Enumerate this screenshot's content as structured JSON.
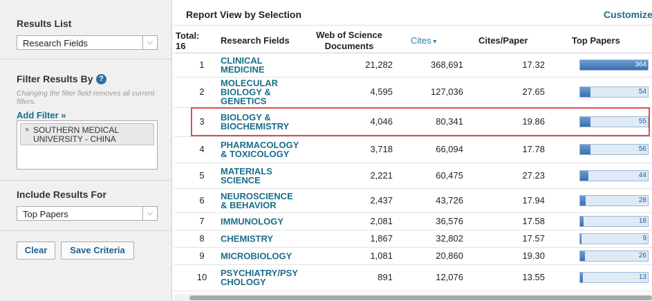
{
  "sidebar": {
    "results_list": {
      "label": "Results List",
      "selected": "Research Fields"
    },
    "filter": {
      "label": "Filter Results By",
      "note": "Changing the filter field removes all current filters.",
      "add_filter": "Add Filter »",
      "filters": [
        "SOUTHERN MEDICAL UNIVERSITY - CHINA"
      ]
    },
    "include": {
      "label": "Include Results For",
      "selected": "Top Papers"
    },
    "buttons": [
      "Clear",
      "Save Criteria"
    ]
  },
  "report": {
    "title": "Report View by Selection",
    "customize": "Customize",
    "table": {
      "columns": [
        "Total: 16",
        "Research Fields",
        "Web of Science Documents",
        "Cites",
        "Cites/Paper",
        "Top Papers"
      ],
      "rows": [
        [
          1,
          "CLINICAL MEDICINE",
          "21,282",
          "368,691",
          "17.32",
          364
        ],
        [
          2,
          "MOLECULAR BIOLOGY & GENETICS",
          "4,595",
          "127,036",
          "27.65",
          54
        ],
        [
          3,
          "BIOLOGY & BIOCHEMISTRY",
          "4,046",
          "80,341",
          "19.86",
          55
        ],
        [
          4,
          "PHARMACOLOGY & TOXICOLOGY",
          "3,718",
          "66,094",
          "17.78",
          56
        ],
        [
          5,
          "MATERIALS SCIENCE",
          "2,221",
          "60,475",
          "27.23",
          44
        ],
        [
          6,
          "NEUROSCIENCE & BEHAVIOR",
          "2,437",
          "43,726",
          "17.94",
          28
        ],
        [
          7,
          "IMMUNOLOGY",
          "2,081",
          "36,576",
          "17.58",
          18
        ],
        [
          8,
          "CHEMISTRY",
          "1,867",
          "32,802",
          "17.57",
          9
        ],
        [
          9,
          "MICROBIOLOGY",
          "1,081",
          "20,860",
          "19.30",
          26
        ],
        [
          10,
          "PSYCHIATRY/PSYCHOLOGY",
          "891",
          "12,076",
          "13.55",
          13
        ]
      ]
    }
  }
}
